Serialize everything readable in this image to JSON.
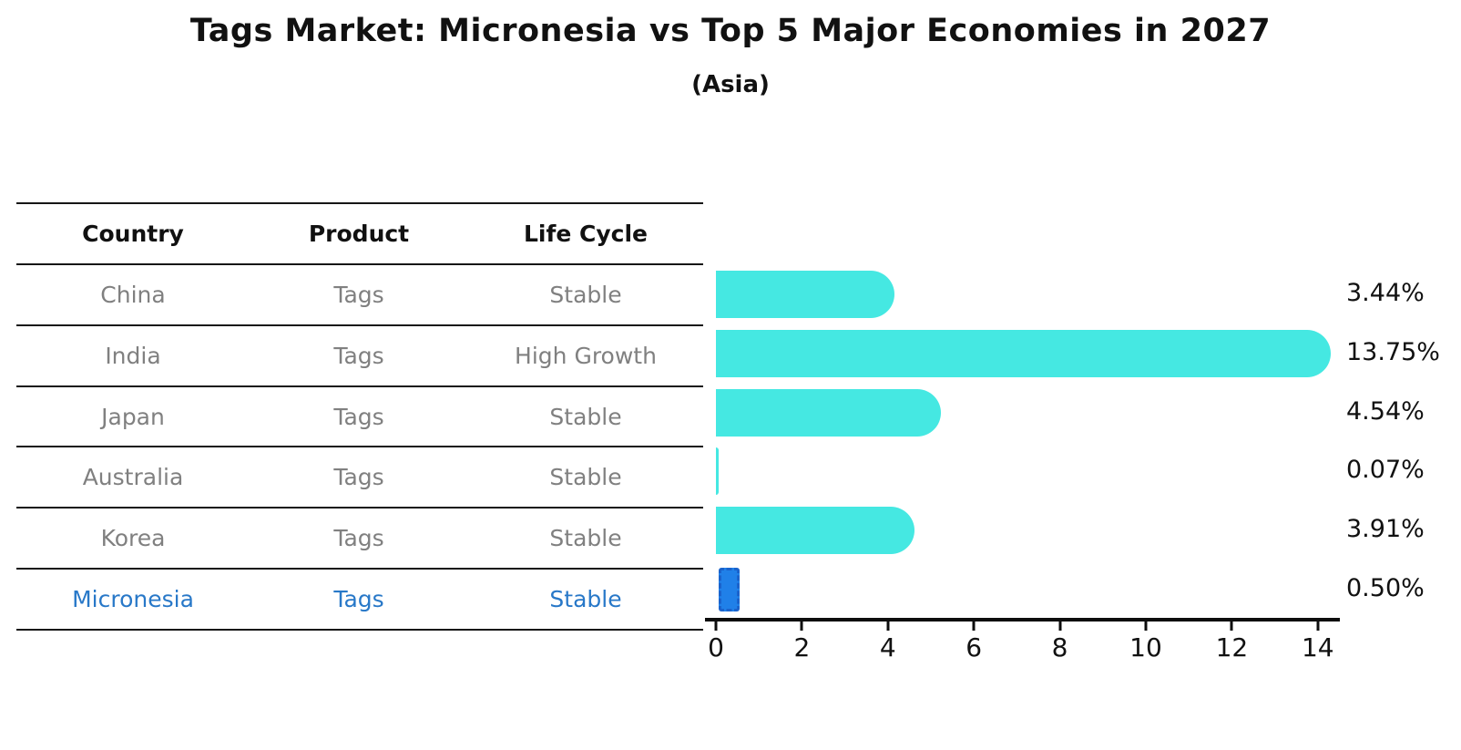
{
  "figure": {
    "title": "Tags Market: Micronesia vs Top 5 Major Economies in 2027",
    "subtitle": "(Asia)"
  },
  "table": {
    "headers": [
      "Country",
      "Product",
      "Life Cycle"
    ],
    "rows": [
      {
        "country": "China",
        "product": "Tags",
        "life_cycle": "Stable",
        "highlighted": false
      },
      {
        "country": "India",
        "product": "Tags",
        "life_cycle": "High Growth",
        "highlighted": false
      },
      {
        "country": "Japan",
        "product": "Tags",
        "life_cycle": "Stable",
        "highlighted": false
      },
      {
        "country": "Australia",
        "product": "Tags",
        "life_cycle": "Stable",
        "highlighted": false
      },
      {
        "country": "Korea",
        "product": "Tags",
        "life_cycle": "Stable",
        "highlighted": false
      },
      {
        "country": "Micronesia",
        "product": "Tags",
        "life_cycle": "Stable",
        "highlighted": true
      }
    ],
    "text_color": "#808080",
    "highlight_text_color": "#2878C8"
  },
  "chart_data": {
    "type": "bar",
    "orientation": "horizontal",
    "title": "Tags Market: Micronesia vs Top 5 Major Economies in 2027",
    "subtitle": "(Asia)",
    "categories": [
      "China",
      "India",
      "Japan",
      "Australia",
      "Korea",
      "Micronesia"
    ],
    "values": [
      3.44,
      13.75,
      4.54,
      0.07,
      3.91,
      0.5
    ],
    "value_labels": [
      "3.44%",
      "13.75%",
      "4.54%",
      "0.07%",
      "3.91%",
      "0.50%"
    ],
    "xlabel": "",
    "ylabel": "",
    "xlim": [
      0,
      14.5
    ],
    "xticks": [
      0,
      2,
      4,
      6,
      8,
      10,
      12,
      14
    ],
    "xtick_labels": [
      "0",
      "2",
      "4",
      "6",
      "8",
      "10",
      "12",
      "14"
    ],
    "grid": false,
    "legend": "none",
    "bar_color": "#45E8E2",
    "highlight_index": 5,
    "highlight_bar_color": "#2080E8",
    "highlight_bar_border": "#1A63CC"
  }
}
